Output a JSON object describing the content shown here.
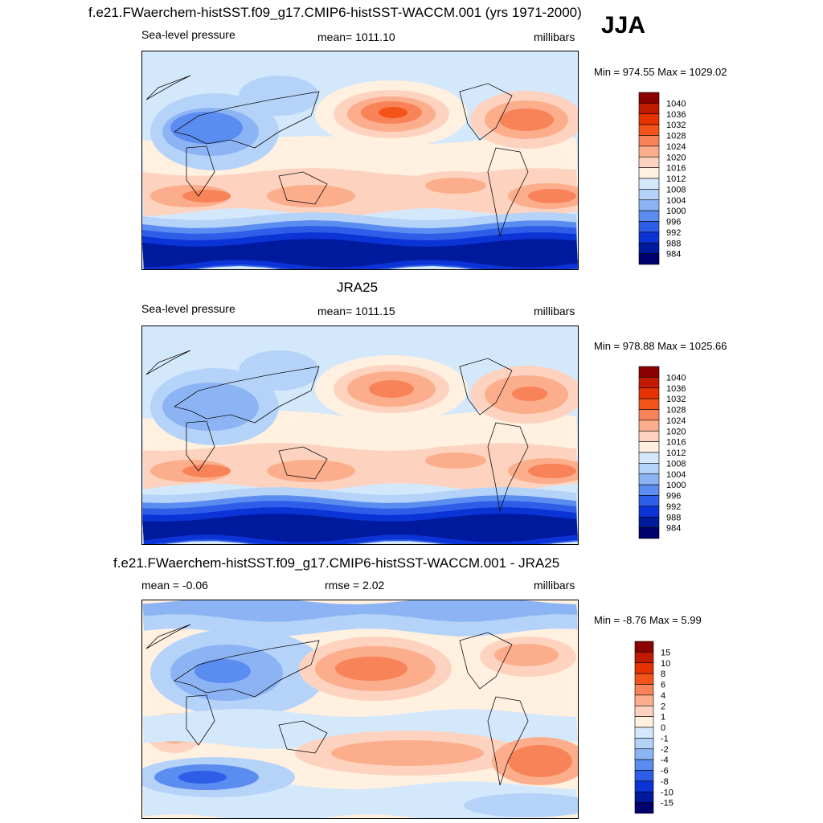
{
  "season": "JJA",
  "model_name": "f.e21.FWaerchem-histSST.f09_g17.CMIP6-histSST-WACCM.001",
  "panels": [
    {
      "id": "model",
      "title": "f.e21.FWaerchem-histSST.f09_g17.CMIP6-histSST-WACCM.001 (yrs 1971-2000)",
      "left_label": "Sea-level pressure",
      "center_label": "mean= 1011.10",
      "right_label": "millibars",
      "minmax": "Min = 974.55 Max = 1029.02",
      "levels": [
        "1040",
        "1036",
        "1032",
        "1028",
        "1024",
        "1020",
        "1016",
        "1012",
        "1008",
        "1004",
        "1000",
        "996",
        "992",
        "988",
        "984"
      ],
      "colors": [
        "#8b0000",
        "#c01a00",
        "#e53200",
        "#f4541a",
        "#f98358",
        "#fcae8c",
        "#fdd3bf",
        "#fff0e0",
        "#d4e8fb",
        "#b5d3f9",
        "#8cb4f5",
        "#5b8cf0",
        "#2e5ee8",
        "#0b33d6",
        "#001a9e",
        "#00006e"
      ]
    },
    {
      "id": "obs",
      "title": "JRA25",
      "left_label": "Sea-level pressure",
      "center_label": "mean= 1011.15",
      "right_label": "millibars",
      "minmax": "Min = 978.88 Max = 1025.66",
      "levels": [
        "1040",
        "1036",
        "1032",
        "1028",
        "1024",
        "1020",
        "1016",
        "1012",
        "1008",
        "1004",
        "1000",
        "996",
        "992",
        "988",
        "984"
      ],
      "colors": [
        "#8b0000",
        "#c01a00",
        "#e53200",
        "#f4541a",
        "#f98358",
        "#fcae8c",
        "#fdd3bf",
        "#fff0e0",
        "#d4e8fb",
        "#b5d3f9",
        "#8cb4f5",
        "#5b8cf0",
        "#2e5ee8",
        "#0b33d6",
        "#001a9e",
        "#00006e"
      ]
    },
    {
      "id": "diff",
      "title": "f.e21.FWaerchem-histSST.f09_g17.CMIP6-histSST-WACCM.001 - JRA25",
      "left_label": "mean =  -0.06",
      "center_label": "rmse =   2.02",
      "right_label": "millibars",
      "minmax": "Min =  -8.76 Max =   5.99",
      "levels": [
        "15",
        "10",
        "8",
        "6",
        "4",
        "2",
        "1",
        "0",
        "-1",
        "-2",
        "-4",
        "-6",
        "-8",
        "-10",
        "-15"
      ],
      "colors": [
        "#8b0000",
        "#c01a00",
        "#e53200",
        "#f4541a",
        "#f98358",
        "#fcae8c",
        "#fdd3bf",
        "#fff0e0",
        "#d4e8fb",
        "#b5d3f9",
        "#8cb4f5",
        "#5b8cf0",
        "#2e5ee8",
        "#0b33d6",
        "#001a9e",
        "#00006e"
      ]
    }
  ]
}
